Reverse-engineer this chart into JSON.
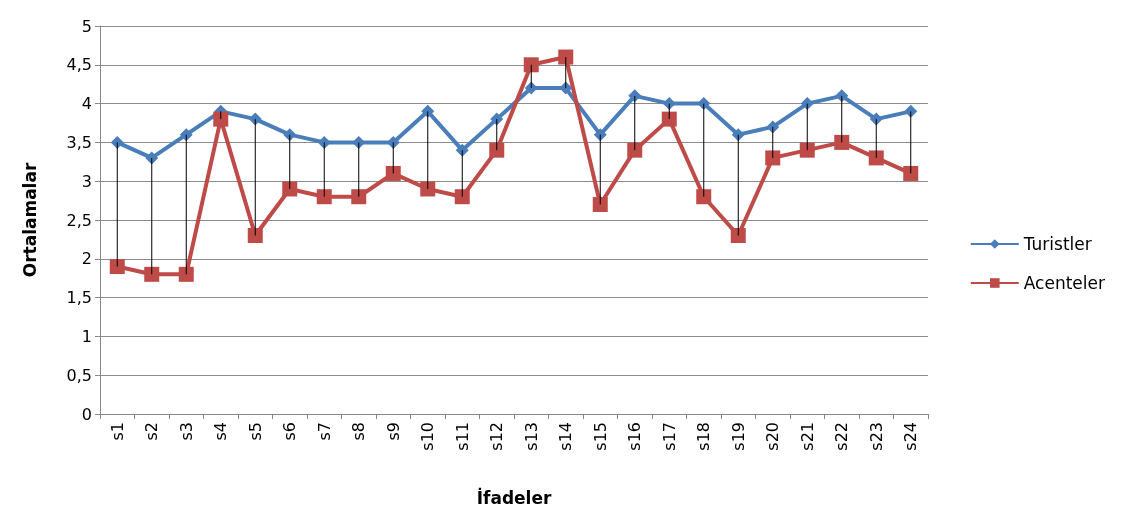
{
  "chart_data": {
    "type": "line",
    "xlabel": "İfadeler",
    "ylabel": "Ortalamalar",
    "categories": [
      "s1",
      "s2",
      "s3",
      "s4",
      "s5",
      "s6",
      "s7",
      "s8",
      "s9",
      "s10",
      "s11",
      "s12",
      "s13",
      "s14",
      "s15",
      "s16",
      "s17",
      "s18",
      "s19",
      "s20",
      "s21",
      "s22",
      "s23",
      "s24"
    ],
    "series": [
      {
        "name": "Turistler",
        "color": "#4a7ebb",
        "marker": "diamond",
        "values": [
          3.5,
          3.3,
          3.6,
          3.9,
          3.8,
          3.6,
          3.5,
          3.5,
          3.5,
          3.9,
          3.4,
          3.8,
          4.2,
          4.2,
          3.6,
          4.1,
          4.0,
          4.0,
          3.6,
          3.7,
          4.0,
          4.1,
          3.8,
          3.9
        ]
      },
      {
        "name": "Acenteler",
        "color": "#be4b48",
        "marker": "square",
        "values": [
          1.9,
          1.8,
          1.8,
          3.8,
          2.3,
          2.9,
          2.8,
          2.8,
          3.1,
          2.9,
          2.8,
          3.4,
          4.5,
          4.6,
          2.7,
          3.4,
          3.8,
          2.8,
          2.3,
          3.3,
          3.4,
          3.5,
          3.3,
          3.1
        ],
        "errors": [
          [
            1.9,
            3.5
          ],
          [
            1.8,
            3.3
          ],
          [
            1.8,
            3.6
          ],
          [
            3.8,
            3.9
          ],
          [
            2.3,
            3.8
          ],
          [
            2.9,
            3.6
          ],
          [
            2.8,
            3.5
          ],
          [
            2.8,
            3.5
          ],
          [
            3.1,
            3.5
          ],
          [
            2.9,
            3.9
          ],
          [
            2.8,
            3.4
          ],
          [
            3.4,
            3.8
          ],
          [
            4.2,
            4.5
          ],
          [
            4.2,
            4.6
          ],
          [
            2.7,
            3.6
          ],
          [
            3.4,
            4.1
          ],
          [
            3.8,
            4.0
          ],
          [
            2.8,
            4.0
          ],
          [
            2.3,
            3.6
          ],
          [
            3.3,
            3.7
          ],
          [
            3.4,
            4.0
          ],
          [
            3.5,
            4.1
          ],
          [
            3.3,
            3.8
          ],
          [
            3.1,
            3.9
          ]
        ]
      }
    ],
    "ylim": [
      0,
      5
    ],
    "yticks": [
      0,
      {
        "value": 0.5,
        "label": "0,5"
      },
      1,
      {
        "value": 1.5,
        "label": "1,5"
      },
      2,
      {
        "value": 2.5,
        "label": "2,5"
      },
      3,
      {
        "value": 3.5,
        "label": "3,5"
      },
      4,
      {
        "value": 4.5,
        "label": "4,5"
      },
      5
    ],
    "grid": "y",
    "legend": "right",
    "line_style": "solid"
  }
}
